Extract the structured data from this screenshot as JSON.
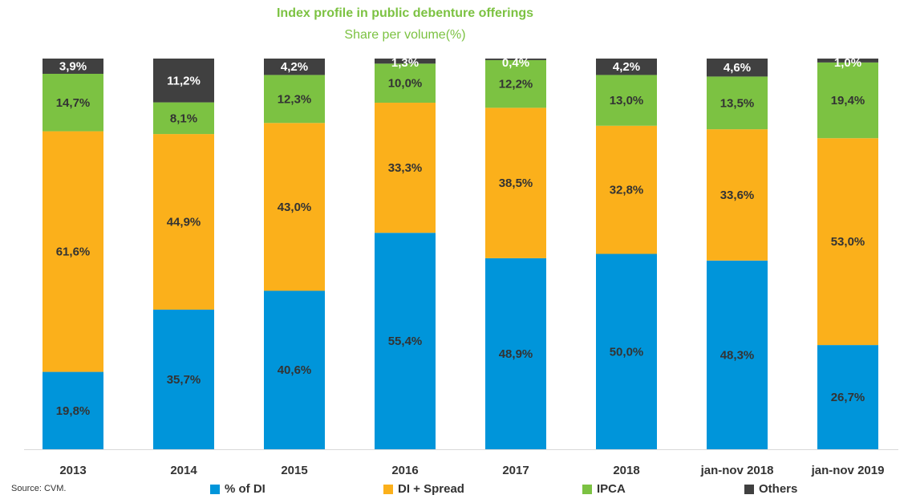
{
  "chart_data": {
    "type": "bar",
    "stacked": true,
    "title": "Index profile in public debenture offerings",
    "subtitle": "Share per volume(%)",
    "categories": [
      "2013",
      "2014",
      "2015",
      "2016",
      "2017",
      "2018",
      "jan-nov 2018",
      "jan-nov 2019"
    ],
    "series": [
      {
        "name": "% of DI",
        "color": "#0095da",
        "values": [
          19.8,
          35.7,
          40.6,
          55.4,
          48.9,
          50.0,
          48.3,
          26.7
        ],
        "labels": [
          "19,8%",
          "35,7%",
          "40,6%",
          "55,4%",
          "48,9%",
          "50,0%",
          "48,3%",
          "26,7%"
        ]
      },
      {
        "name": "DI + Spread",
        "color": "#fbb01b",
        "values": [
          61.6,
          44.9,
          43.0,
          33.3,
          38.5,
          32.8,
          33.6,
          53.0
        ],
        "labels": [
          "61,6%",
          "44,9%",
          "43,0%",
          "33,3%",
          "38,5%",
          "32,8%",
          "33,6%",
          "53,0%"
        ]
      },
      {
        "name": "IPCA",
        "color": "#7cc242",
        "values": [
          14.7,
          8.1,
          12.3,
          10.0,
          12.2,
          13.0,
          13.5,
          19.4
        ],
        "labels": [
          "14,7%",
          "8,1%",
          "12,3%",
          "10,0%",
          "12,2%",
          "13,0%",
          "13,5%",
          "19,4%"
        ]
      },
      {
        "name": "Others",
        "color": "#404040",
        "values": [
          3.9,
          11.2,
          4.2,
          1.3,
          0.4,
          4.2,
          4.6,
          1.0
        ],
        "labels": [
          "3,9%",
          "11,2%",
          "4,2%",
          "1,3%",
          "0,4%",
          "4,2%",
          "4,6%",
          "1,0%"
        ]
      }
    ],
    "ylim": [
      0,
      100
    ],
    "grid": false,
    "legend_position": "bottom"
  },
  "footer": {
    "source": "Source: CVM."
  }
}
